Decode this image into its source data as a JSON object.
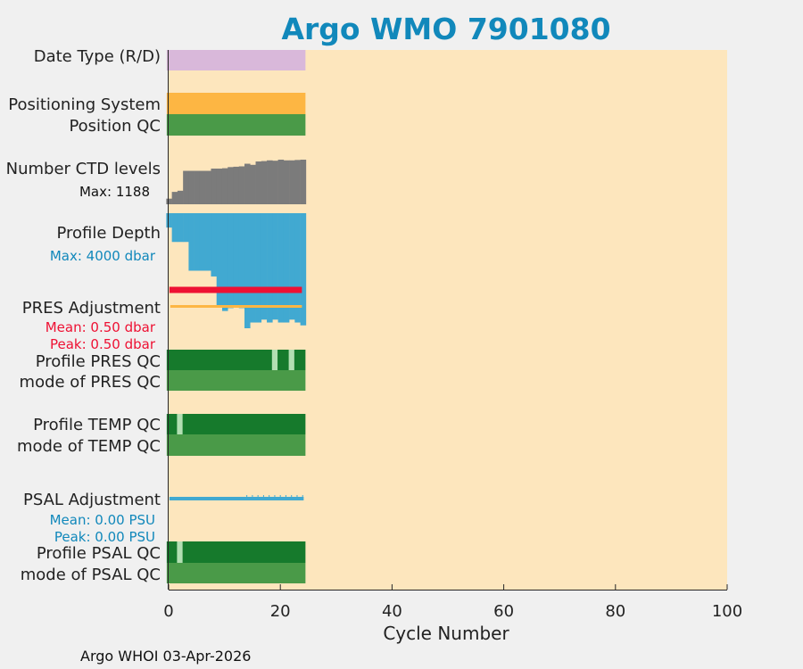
{
  "chart_data": {
    "type": "bar",
    "title": "Argo WMO 7901080",
    "xlabel": "Cycle Number",
    "xlim": [
      0,
      100
    ],
    "xticks": [
      0,
      20,
      40,
      60,
      80,
      100
    ],
    "cycles": [
      0,
      24
    ],
    "background_color": "#fde6bd",
    "rows": [
      {
        "key": "date_type",
        "label": "Date Type (R/D)",
        "color": "#d9b8da",
        "type": "flag"
      },
      {
        "key": "pos_system",
        "label": "Positioning System",
        "color": "#fdb643",
        "type": "flag"
      },
      {
        "key": "pos_qc",
        "label": "Position QC",
        "color": "#4a9a48",
        "type": "flag"
      },
      {
        "key": "ctd_levels",
        "label": "Number CTD levels",
        "sublabel": "Max: 1188",
        "color": "#7b7b7b",
        "max": 1188,
        "values": [
          150,
          330,
          360,
          890,
          890,
          890,
          890,
          890,
          950,
          950,
          960,
          990,
          1000,
          1010,
          1080,
          1050,
          1140,
          1150,
          1170,
          1160,
          1188,
          1170,
          1170,
          1180,
          1188
        ]
      },
      {
        "key": "profile_depth",
        "label": "Profile Depth",
        "sublabel": "Max: 4000 dbar",
        "color": "#41a9d1",
        "unit": "dbar",
        "max": 4000,
        "values": [
          500,
          1000,
          1000,
          1000,
          2000,
          2000,
          2000,
          2000,
          2200,
          3200,
          3400,
          3300,
          3200,
          3300,
          4000,
          3800,
          3800,
          3700,
          3800,
          3700,
          3800,
          3800,
          3700,
          3800,
          3900
        ]
      },
      {
        "key": "pres_adj",
        "label": "PRES Adjustment",
        "mean": "Mean: 0.50 dbar",
        "peak": "Peak: 0.50 dbar",
        "color": "#ee1133",
        "ref_color": "#fdb643",
        "values_dbar": 0.5
      },
      {
        "key": "prof_pres_qc",
        "label": "Profile PRES QC",
        "color": "#167a2c",
        "alt_color": "#b3dfb3",
        "alt_cycles": [
          19,
          22
        ]
      },
      {
        "key": "mode_pres_qc",
        "label": "mode of PRES QC",
        "color": "#4a9a48"
      },
      {
        "key": "prof_temp_qc",
        "label": "Profile TEMP QC",
        "color": "#167a2c",
        "alt_color": "#b3dfb3",
        "alt_cycles": [
          2
        ]
      },
      {
        "key": "mode_temp_qc",
        "label": "mode of TEMP QC",
        "color": "#4a9a48"
      },
      {
        "key": "psal_adj",
        "label": "PSAL Adjustment",
        "mean": "Mean: 0.00 PSU",
        "peak": "Peak: 0.00 PSU",
        "color": "#41a9d1"
      },
      {
        "key": "prof_psal_qc",
        "label": "Profile PSAL QC",
        "color": "#167a2c",
        "alt_color": "#b3dfb3",
        "alt_cycles": [
          2
        ]
      },
      {
        "key": "mode_psal_qc",
        "label": "mode of PSAL QC",
        "color": "#4a9a48"
      }
    ]
  },
  "footer": "Argo WHOI 03-Apr-2026"
}
